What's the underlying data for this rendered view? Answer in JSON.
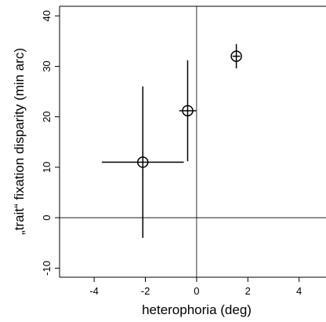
{
  "chart_data": {
    "type": "scatter",
    "xlabel": "heterophoria (deg)",
    "ylabel": "„trait“ fixation disparity (min arc)",
    "x": [
      -2.1,
      -0.35,
      1.55
    ],
    "y": [
      11,
      21.2,
      32
    ],
    "x_err": [
      1.6,
      0.33,
      0.15
    ],
    "y_err": [
      15,
      10,
      2.4
    ],
    "xlim": [
      -5.35,
      5.05
    ],
    "ylim": [
      -11.8,
      41.9
    ],
    "xticks": [
      -4,
      -2,
      0,
      2,
      4
    ],
    "yticks": [
      -10,
      0,
      10,
      20,
      30,
      40
    ],
    "color": "#000000"
  }
}
